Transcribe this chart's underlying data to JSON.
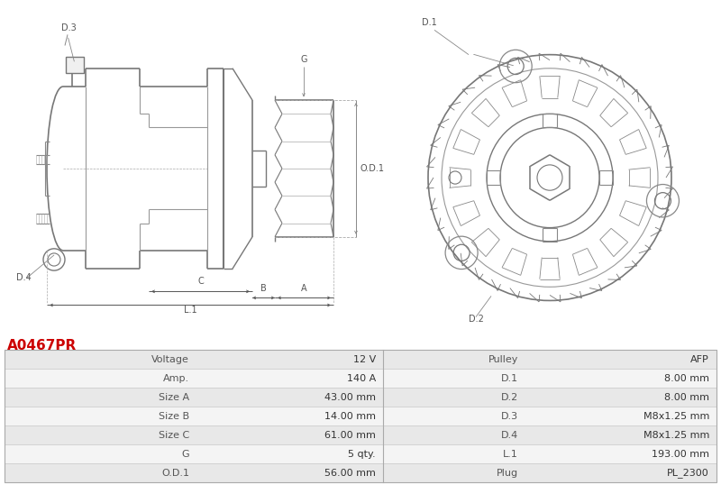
{
  "part_number": "A0467PR",
  "part_number_color": "#cc0000",
  "background_color": "#ffffff",
  "table_rows": [
    [
      "Voltage",
      "12 V",
      "Pulley",
      "AFP"
    ],
    [
      "Amp.",
      "140 A",
      "D.1",
      "8.00 mm"
    ],
    [
      "Size A",
      "43.00 mm",
      "D.2",
      "8.00 mm"
    ],
    [
      "Size B",
      "14.00 mm",
      "D.3",
      "M8x1.25 mm"
    ],
    [
      "Size C",
      "61.00 mm",
      "D.4",
      "M8x1.25 mm"
    ],
    [
      "G",
      "5 qty.",
      "L.1",
      "193.00 mm"
    ],
    [
      "O.D.1",
      "56.00 mm",
      "Plug",
      "PL_2300"
    ]
  ],
  "table_bg_even": "#e8e8e8",
  "table_bg_odd": "#f4f4f4",
  "table_border_color": "#cccccc",
  "label_color": "#555555",
  "value_color": "#333333",
  "line_color": "#777777",
  "dim_color": "#555555"
}
